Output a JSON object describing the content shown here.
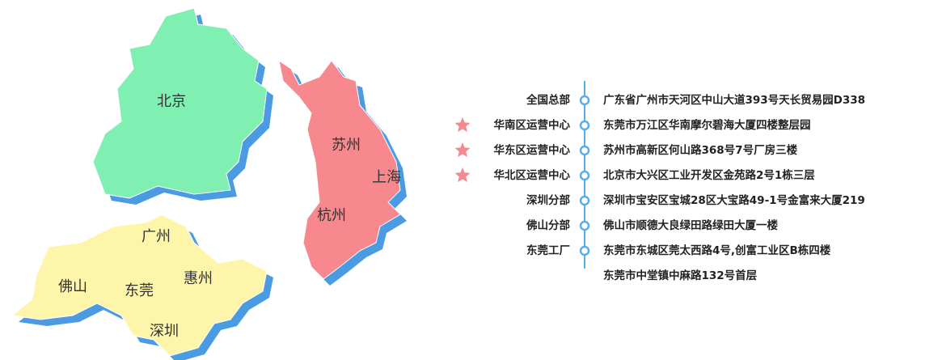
{
  "map": {
    "regions": [
      {
        "labels": [
          "北京"
        ],
        "color": "#80efb2"
      },
      {
        "labels": [
          "苏州",
          "上海",
          "杭州"
        ],
        "color": "#f7888d"
      },
      {
        "labels": [
          "广州",
          "佛山",
          "东莞",
          "惠州",
          "深圳"
        ],
        "color": "#fdf6aa"
      }
    ],
    "shadow_color": "#4a9be2"
  },
  "offices": [
    {
      "name": "全国总部",
      "addresses": [
        "广东省广州市天河区中山大道393号天长贸易园D338"
      ],
      "starred": false
    },
    {
      "name": "华南区运营中心",
      "addresses": [
        "东莞市万江区华南摩尔碧海大厦四楼整层园"
      ],
      "starred": true
    },
    {
      "name": "华东区运营中心",
      "addresses": [
        "苏州市高新区何山路368号7号厂房三楼"
      ],
      "starred": true
    },
    {
      "name": "华北区运营中心",
      "addresses": [
        "北京市大兴区工业开发区金苑路2号1栋三层"
      ],
      "starred": true
    },
    {
      "name": "深圳分部",
      "addresses": [
        "深圳市宝安区宝城28区大宝路49-1号金富来大厦219"
      ],
      "starred": false
    },
    {
      "name": "佛山分部",
      "addresses": [
        "佛山市顺德大良绿田路绿田大厦一楼"
      ],
      "starred": false
    },
    {
      "name": "东莞工厂",
      "addresses": [
        "东莞市东城区莞太西路4号,创富工业区B栋四楼",
        "东莞市中堂镇中麻路132号首层"
      ],
      "starred": false
    }
  ]
}
